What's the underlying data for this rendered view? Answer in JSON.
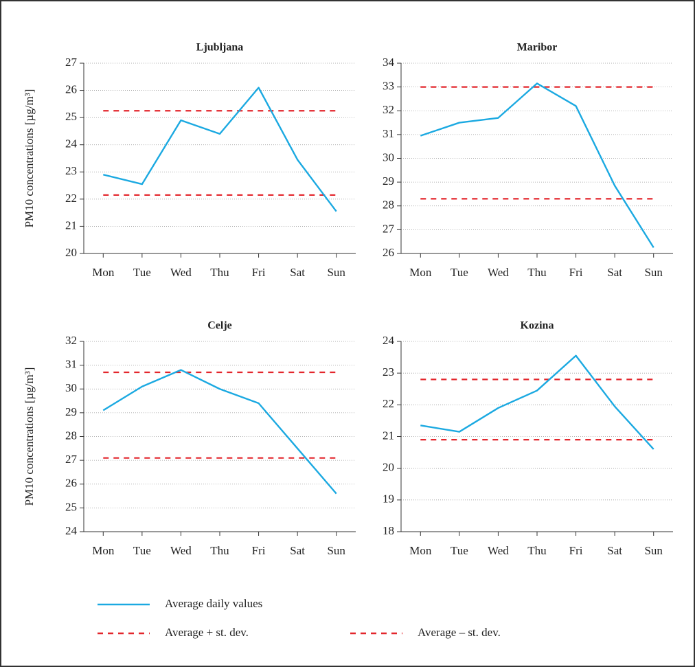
{
  "chart_data": [
    {
      "type": "line",
      "title": "Ljubljana",
      "y_label": "PM10 concentrations [µg/m³]",
      "categories": [
        "Mon",
        "Tue",
        "Wed",
        "Thu",
        "Fri",
        "Sat",
        "Sun"
      ],
      "series": [
        {
          "values": [
            22.9,
            22.55,
            24.9,
            24.4,
            26.1,
            23.45,
            21.55
          ]
        }
      ],
      "reference_lines": [
        25.25,
        22.15
      ],
      "ylim": [
        20,
        27
      ],
      "yticks": [
        20,
        21,
        22,
        23,
        24,
        25,
        26,
        27
      ],
      "grid": true
    },
    {
      "type": "line",
      "title": "Maribor",
      "categories": [
        "Mon",
        "Tue",
        "Wed",
        "Thu",
        "Fri",
        "Sat",
        "Sun"
      ],
      "series": [
        {
          "values": [
            30.95,
            31.5,
            31.7,
            33.15,
            32.2,
            28.85,
            26.25
          ]
        }
      ],
      "reference_lines": [
        33.0,
        28.3
      ],
      "ylim": [
        26,
        34
      ],
      "yticks": [
        26,
        27,
        28,
        29,
        30,
        31,
        32,
        33,
        34
      ],
      "grid": true
    },
    {
      "type": "line",
      "title": "Celje",
      "y_label": "PM10 concentrations [µg/m³]",
      "categories": [
        "Mon",
        "Tue",
        "Wed",
        "Thu",
        "Fri",
        "Sat",
        "Sun"
      ],
      "series": [
        {
          "values": [
            29.1,
            30.1,
            30.8,
            30.0,
            29.4,
            27.5,
            25.6
          ]
        }
      ],
      "reference_lines": [
        30.7,
        27.1
      ],
      "ylim": [
        24,
        32
      ],
      "yticks": [
        24,
        25,
        26,
        27,
        28,
        29,
        30,
        31,
        32
      ],
      "grid": true
    },
    {
      "type": "line",
      "title": "Kozina",
      "categories": [
        "Mon",
        "Tue",
        "Wed",
        "Thu",
        "Fri",
        "Sat",
        "Sun"
      ],
      "series": [
        {
          "values": [
            21.35,
            21.15,
            21.9,
            22.45,
            23.55,
            21.95,
            20.6
          ]
        }
      ],
      "reference_lines": [
        22.8,
        20.9
      ],
      "ylim": [
        18,
        24
      ],
      "yticks": [
        18,
        19,
        20,
        21,
        22,
        23,
        24
      ],
      "grid": true
    }
  ],
  "legend": [
    {
      "name": "Average daily values",
      "color": "#1ba9e1",
      "style": "solid"
    },
    {
      "name": "Average + st. dev.",
      "color": "#e3262c",
      "style": "dashed"
    },
    {
      "name": "Average – st. dev.",
      "color": "#e3262c",
      "style": "dashed"
    }
  ]
}
